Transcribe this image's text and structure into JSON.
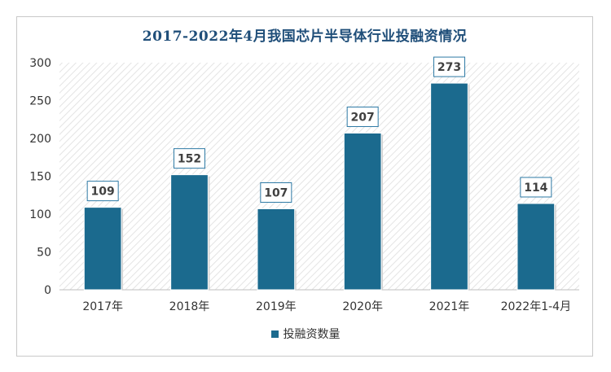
{
  "chart_data": {
    "type": "bar",
    "title": "2017-2022年4月我国芯片半导体行业投融资情况",
    "categories": [
      "2017年",
      "2018年",
      "2019年",
      "2020年",
      "2021年",
      "2022年1-4月"
    ],
    "series": [
      {
        "name": "投融资数量",
        "values": [
          109,
          152,
          107,
          207,
          273,
          114
        ]
      }
    ],
    "ylim": [
      0,
      300
    ],
    "yticks": [
      0,
      50,
      100,
      150,
      200,
      250,
      300
    ],
    "grid": false,
    "data_labels": true,
    "legend_position": "bottom",
    "colors": {
      "bar": "#1b6a8e",
      "title": "#1f4e79"
    }
  }
}
